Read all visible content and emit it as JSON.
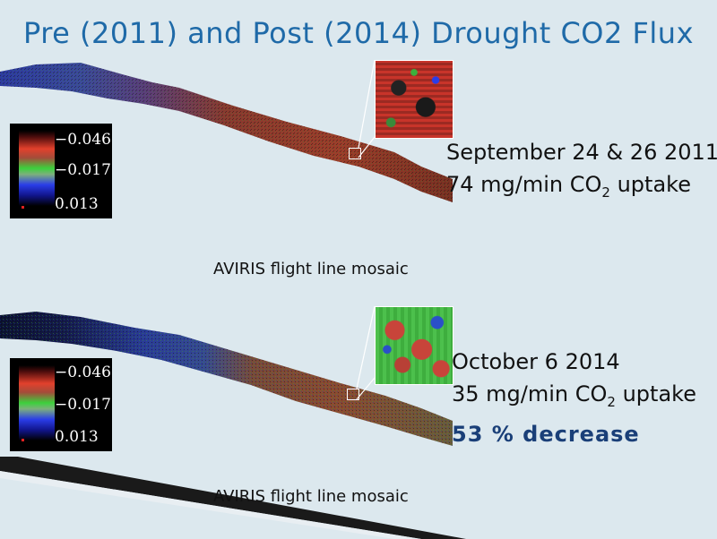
{
  "title": "Pre (2011) and Post (2014) Drought CO2 Flux",
  "colors": {
    "title": "#1f6aa8",
    "decrease": "#1a3f78",
    "background": "#dce8ee"
  },
  "color_scale": {
    "ticks": [
      "−0.046",
      "−0.017",
      "0.013"
    ]
  },
  "panels": [
    {
      "date": "September 24 & 26 2011",
      "uptake_value": "74 mg/min CO",
      "uptake_sub": "2",
      "uptake_unit": " uptake",
      "caption": "AVIRIS flight line mosaic"
    },
    {
      "date": "October 6 2014",
      "uptake_value": "35 mg/min CO",
      "uptake_sub": "2",
      "uptake_unit": " uptake",
      "decrease": "53 % decrease",
      "caption": "AVIRIS flight line mosaic"
    }
  ]
}
